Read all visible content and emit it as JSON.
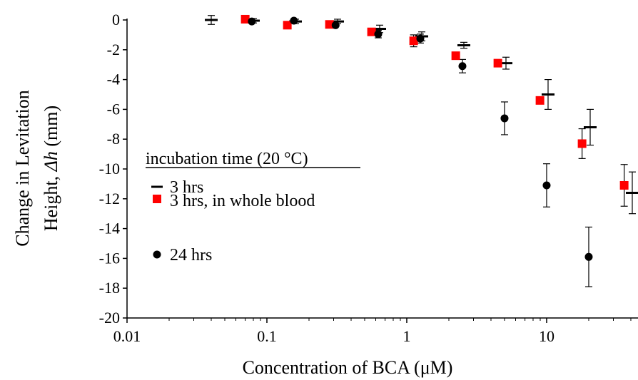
{
  "chart_data": {
    "type": "scatter",
    "xlabel": "Concentration  of BCA (μM)",
    "ylabel": {
      "line1": "Change in Levitation",
      "line2_prefix": "Height, ",
      "line2_symbol": "Δh",
      "line2_suffix": " (mm)"
    },
    "x_scale": "log",
    "xlim": [
      0.01,
      45
    ],
    "ylim": [
      -20,
      0
    ],
    "x_ticks": [
      {
        "value": 0.01,
        "label": "0.01"
      },
      {
        "value": 0.1,
        "label": "0.1"
      },
      {
        "value": 1,
        "label": "1"
      },
      {
        "value": 10,
        "label": "10"
      }
    ],
    "y_ticks": [
      {
        "value": 0,
        "label": "0"
      },
      {
        "value": -2,
        "label": "-2"
      },
      {
        "value": -4,
        "label": "-4"
      },
      {
        "value": -6,
        "label": "-6"
      },
      {
        "value": -8,
        "label": "-8"
      },
      {
        "value": -10,
        "label": "-10"
      },
      {
        "value": -12,
        "label": "-12"
      },
      {
        "value": -14,
        "label": "-14"
      },
      {
        "value": -16,
        "label": "-16"
      },
      {
        "value": -18,
        "label": "-18"
      },
      {
        "value": -20,
        "label": "-20"
      }
    ],
    "grid": false,
    "legend": {
      "title": "incubation time (20 °C)",
      "placement": "lower-left"
    },
    "series": [
      {
        "name": "3 hrs",
        "marker": "dash",
        "color": "#000000",
        "points": [
          {
            "x": 0.04,
            "y": 0.0,
            "err": 0.3
          },
          {
            "x": 0.08,
            "y": -0.05,
            "err": 0.15
          },
          {
            "x": 0.16,
            "y": -0.1,
            "err": 0.15
          },
          {
            "x": 0.32,
            "y": -0.1,
            "err": 0.15
          },
          {
            "x": 0.64,
            "y": -0.6,
            "err": 0.25
          },
          {
            "x": 1.28,
            "y": -1.1,
            "err": 0.3
          },
          {
            "x": 2.56,
            "y": -1.7,
            "err": 0.2
          },
          {
            "x": 5.12,
            "y": -2.9,
            "err": 0.4
          },
          {
            "x": 10.24,
            "y": -5.0,
            "err": 1.0
          },
          {
            "x": 20.48,
            "y": -7.2,
            "err": 1.2
          },
          {
            "x": 40.96,
            "y": -11.6,
            "err": 1.4
          }
        ]
      },
      {
        "name": "3 hrs, in whole blood",
        "marker": "square",
        "color": "#ff0000",
        "points": [
          {
            "x": 0.07,
            "y": 0.05,
            "err": 0.0
          },
          {
            "x": 0.14,
            "y": -0.35,
            "err": 0.0
          },
          {
            "x": 0.28,
            "y": -0.3,
            "err": 0.0
          },
          {
            "x": 0.56,
            "y": -0.8,
            "err": 0.0
          },
          {
            "x": 1.12,
            "y": -1.4,
            "err": 0.4
          },
          {
            "x": 2.24,
            "y": -2.4,
            "err": 0.0
          },
          {
            "x": 4.48,
            "y": -2.9,
            "err": 0.0
          },
          {
            "x": 8.96,
            "y": -5.4,
            "err": 0.0
          },
          {
            "x": 17.92,
            "y": -8.3,
            "err": 1.0
          },
          {
            "x": 35.84,
            "y": -11.1,
            "err": 1.4
          }
        ]
      },
      {
        "name": "24 hrs",
        "marker": "circle",
        "color": "#000000",
        "points": [
          {
            "x": 0.078,
            "y": -0.1,
            "err": 0.0
          },
          {
            "x": 0.156,
            "y": -0.05,
            "err": 0.0
          },
          {
            "x": 0.31,
            "y": -0.35,
            "err": 0.0
          },
          {
            "x": 0.625,
            "y": -0.95,
            "err": 0.25
          },
          {
            "x": 1.25,
            "y": -1.25,
            "err": 0.3
          },
          {
            "x": 2.5,
            "y": -3.1,
            "err": 0.45
          },
          {
            "x": 5.0,
            "y": -6.6,
            "err": 1.1
          },
          {
            "x": 10.0,
            "y": -11.1,
            "err": 1.45
          },
          {
            "x": 20.0,
            "y": -15.9,
            "err": 2.0
          }
        ]
      }
    ]
  }
}
